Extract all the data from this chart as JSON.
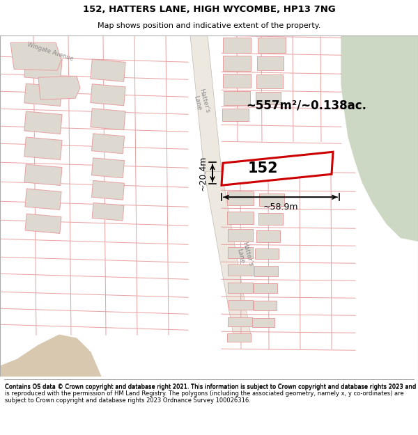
{
  "title": "152, HATTERS LANE, HIGH WYCOMBE, HP13 7NG",
  "subtitle": "Map shows position and indicative extent of the property.",
  "footer": "Contains OS data © Crown copyright and database right 2021. This information is subject to Crown copyright and database rights 2023 and is reproduced with the permission of HM Land Registry. The polygons (including the associated geometry, namely x, y co-ordinates) are subject to Crown copyright and database rights 2023 Ordnance Survey 100026316.",
  "area_label": "~557m²/~0.138ac.",
  "property_label": "152",
  "width_label": "~58.9m",
  "height_label": "~20.4m",
  "green_color": "#ccd8c4",
  "sandy_color": "#d8c8b0",
  "road_fill": "#ede8e0",
  "road_edge": "#c0b8b0",
  "plot_line_color": "#e8a0a0",
  "building_fill": "#ddd8d0",
  "building_edge": "#e8a0a0",
  "property_edge": "#cc0000",
  "map_bg": "#ffffff",
  "label_color": "#888888"
}
